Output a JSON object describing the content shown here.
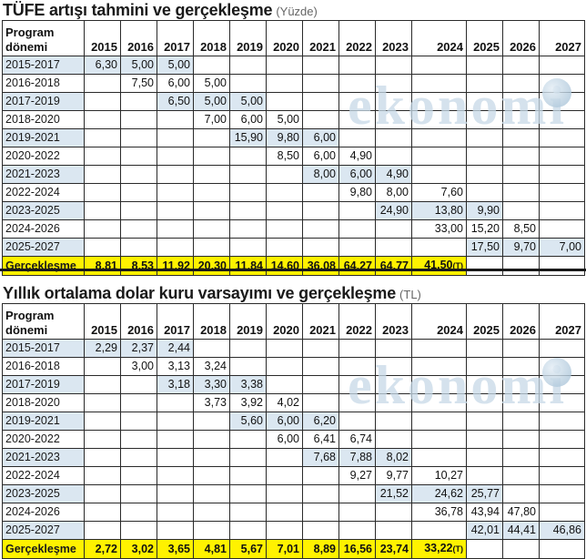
{
  "watermark": "ekonomi",
  "table1": {
    "title": "TÜFE artışı tahmini ve gerçekleşme",
    "unit": "(Yüzde)",
    "header_line1": "Program",
    "header_line2": "dönemi",
    "years": [
      "2015",
      "2016",
      "2017",
      "2018",
      "2019",
      "2020",
      "2021",
      "2022",
      "2023",
      "2024",
      "2025",
      "2026",
      "2027"
    ],
    "rows": [
      {
        "label": "2015-2017",
        "cells": [
          "6,30",
          "5,00",
          "5,00",
          "",
          "",
          "",
          "",
          "",
          "",
          "",
          "",
          "",
          ""
        ]
      },
      {
        "label": "2016-2018",
        "cells": [
          "",
          "7,50",
          "6,00",
          "5,00",
          "",
          "",
          "",
          "",
          "",
          "",
          "",
          "",
          ""
        ]
      },
      {
        "label": "2017-2019",
        "cells": [
          "",
          "",
          "6,50",
          "5,00",
          "5,00",
          "",
          "",
          "",
          "",
          "",
          "",
          "",
          ""
        ]
      },
      {
        "label": "2018-2020",
        "cells": [
          "",
          "",
          "",
          "7,00",
          "6,00",
          "5,00",
          "",
          "",
          "",
          "",
          "",
          "",
          ""
        ]
      },
      {
        "label": "2019-2021",
        "cells": [
          "",
          "",
          "",
          "",
          "15,90",
          "9,80",
          "6,00",
          "",
          "",
          "",
          "",
          "",
          ""
        ]
      },
      {
        "label": "2020-2022",
        "cells": [
          "",
          "",
          "",
          "",
          "",
          "8,50",
          "6,00",
          "4,90",
          "",
          "",
          "",
          "",
          ""
        ]
      },
      {
        "label": "2021-2023",
        "cells": [
          "",
          "",
          "",
          "",
          "",
          "",
          "8,00",
          "6,00",
          "4,90",
          "",
          "",
          "",
          ""
        ]
      },
      {
        "label": "2022-2024",
        "cells": [
          "",
          "",
          "",
          "",
          "",
          "",
          "",
          "9,80",
          "8,00",
          "7,60",
          "",
          "",
          ""
        ]
      },
      {
        "label": "2023-2025",
        "cells": [
          "",
          "",
          "",
          "",
          "",
          "",
          "",
          "",
          "24,90",
          "13,80",
          "9,90",
          "",
          ""
        ]
      },
      {
        "label": "2024-2026",
        "cells": [
          "",
          "",
          "",
          "",
          "",
          "",
          "",
          "",
          "",
          "33,00",
          "15,20",
          "8,50",
          ""
        ]
      },
      {
        "label": "2025-2027",
        "cells": [
          "",
          "",
          "",
          "",
          "",
          "",
          "",
          "",
          "",
          "",
          "17,50",
          "9,70",
          "7,00"
        ]
      }
    ],
    "realized": {
      "label": "Gerçekleşme",
      "cells": [
        "8,81",
        "8,53",
        "11,92",
        "20,30",
        "11,84",
        "14,60",
        "36,08",
        "64,27",
        "64,77",
        "41,50",
        "",
        "",
        ""
      ],
      "note": "(T)"
    }
  },
  "table2": {
    "title": "Yıllık ortalama dolar kuru varsayımı ve gerçekleşme",
    "unit": "(TL)",
    "header_line1": "Program",
    "header_line2": "dönemi",
    "years": [
      "2015",
      "2016",
      "2017",
      "2018",
      "2019",
      "2020",
      "2021",
      "2022",
      "2023",
      "2024",
      "2025",
      "2026",
      "2027"
    ],
    "rows": [
      {
        "label": "2015-2017",
        "cells": [
          "2,29",
          "2,37",
          "2,44",
          "",
          "",
          "",
          "",
          "",
          "",
          "",
          "",
          "",
          ""
        ]
      },
      {
        "label": "2016-2018",
        "cells": [
          "",
          "3,00",
          "3,13",
          "3,24",
          "",
          "",
          "",
          "",
          "",
          "",
          "",
          "",
          ""
        ]
      },
      {
        "label": "2017-2019",
        "cells": [
          "",
          "",
          "3,18",
          "3,30",
          "3,38",
          "",
          "",
          "",
          "",
          "",
          "",
          "",
          ""
        ]
      },
      {
        "label": "2018-2020",
        "cells": [
          "",
          "",
          "",
          "3,73",
          "3,92",
          "4,02",
          "",
          "",
          "",
          "",
          "",
          "",
          ""
        ]
      },
      {
        "label": "2019-2021",
        "cells": [
          "",
          "",
          "",
          "",
          "5,60",
          "6,00",
          "6,20",
          "",
          "",
          "",
          "",
          "",
          ""
        ]
      },
      {
        "label": "2020-2022",
        "cells": [
          "",
          "",
          "",
          "",
          "",
          "6,00",
          "6,41",
          "6,74",
          "",
          "",
          "",
          "",
          ""
        ]
      },
      {
        "label": "2021-2023",
        "cells": [
          "",
          "",
          "",
          "",
          "",
          "",
          "7,68",
          "7,88",
          "8,02",
          "",
          "",
          "",
          ""
        ]
      },
      {
        "label": "2022-2024",
        "cells": [
          "",
          "",
          "",
          "",
          "",
          "",
          "",
          "9,27",
          "9,77",
          "10,27",
          "",
          "",
          ""
        ]
      },
      {
        "label": "2023-2025",
        "cells": [
          "",
          "",
          "",
          "",
          "",
          "",
          "",
          "",
          "21,52",
          "24,62",
          "25,77",
          "",
          ""
        ]
      },
      {
        "label": "2024-2026",
        "cells": [
          "",
          "",
          "",
          "",
          "",
          "",
          "",
          "",
          "",
          "36,78",
          "43,94",
          "47,80",
          ""
        ]
      },
      {
        "label": "2025-2027",
        "cells": [
          "",
          "",
          "",
          "",
          "",
          "",
          "",
          "",
          "",
          "",
          "42,01",
          "44,41",
          "46,86"
        ]
      }
    ],
    "realized": {
      "label": "Gerçekleşme",
      "cells": [
        "2,72",
        "3,02",
        "3,65",
        "4,81",
        "5,67",
        "7,01",
        "8,89",
        "16,56",
        "23,74",
        "33,22",
        "",
        "",
        ""
      ],
      "note": "(T)"
    }
  }
}
